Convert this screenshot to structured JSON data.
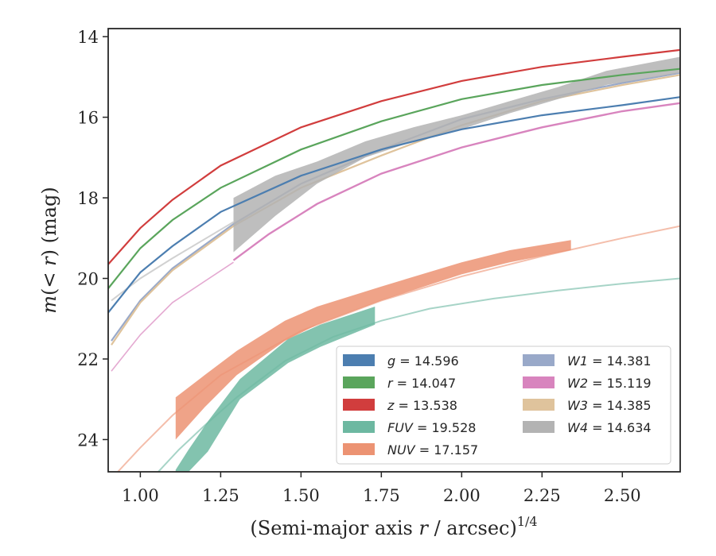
{
  "chart_data": {
    "type": "line",
    "title": "",
    "xlabel_main": "(Semi-major axis ",
    "xlabel_var": "r",
    "xlabel_rest": " / arcsec)",
    "xlabel_sup": "1/4",
    "ylabel_main": "m",
    "ylabel_mid": "(< ",
    "ylabel_var": "r",
    "ylabel_rest": ") (mag)",
    "xlim": [
      0.9,
      2.68
    ],
    "ylim": [
      24.8,
      13.8
    ],
    "y_inverted": true,
    "xticks": [
      1.0,
      1.25,
      1.5,
      1.75,
      2.0,
      2.25,
      2.5
    ],
    "xtick_labels": [
      "1.00",
      "1.25",
      "1.50",
      "1.75",
      "2.00",
      "2.25",
      "2.50"
    ],
    "yticks": [
      14,
      16,
      18,
      20,
      22,
      24
    ],
    "ytick_labels": [
      "14",
      "16",
      "18",
      "20",
      "22",
      "24"
    ],
    "grid": false,
    "legend_position": "lower-right",
    "series": [
      {
        "band": "g",
        "value": "14.596",
        "color": "#4c7eb0",
        "kind": "line",
        "model": {
          "x": [
            0.9,
            1.0,
            1.1,
            1.25,
            1.5,
            1.75,
            2.0,
            2.25,
            2.5,
            2.68
          ],
          "y": [
            20.85,
            19.85,
            19.2,
            18.35,
            17.45,
            16.8,
            16.3,
            15.95,
            15.7,
            15.5
          ]
        }
      },
      {
        "band": "r",
        "value": "14.047",
        "color": "#5aa55c",
        "kind": "line",
        "model": {
          "x": [
            0.9,
            1.0,
            1.1,
            1.25,
            1.5,
            1.75,
            2.0,
            2.25,
            2.5,
            2.68
          ],
          "y": [
            20.25,
            19.25,
            18.55,
            17.75,
            16.8,
            16.1,
            15.55,
            15.2,
            14.95,
            14.8
          ]
        }
      },
      {
        "band": "z",
        "value": "13.538",
        "color": "#d13d3d",
        "kind": "line",
        "model": {
          "x": [
            0.9,
            1.0,
            1.1,
            1.25,
            1.5,
            1.75,
            2.0,
            2.25,
            2.5,
            2.68
          ],
          "y": [
            19.65,
            18.75,
            18.05,
            17.2,
            16.25,
            15.6,
            15.1,
            14.75,
            14.5,
            14.33
          ]
        }
      },
      {
        "band": "FUV",
        "value": "19.528",
        "color": "#6db8a1",
        "kind": "band",
        "model": {
          "x": [
            1.05,
            1.12,
            1.2,
            1.3,
            1.45,
            1.6,
            1.75,
            1.9,
            2.1,
            2.3,
            2.5,
            2.68
          ],
          "y": [
            24.85,
            24.25,
            23.65,
            22.95,
            22.05,
            21.45,
            21.05,
            20.75,
            20.5,
            20.3,
            20.13,
            20.0
          ]
        },
        "band_x": [
          1.11,
          1.15,
          1.21,
          1.31,
          1.46,
          1.56,
          1.73
        ],
        "band_lo": [
          24.75,
          24.25,
          23.55,
          22.5,
          21.5,
          21.15,
          20.7
        ],
        "band_hi": [
          24.8,
          24.8,
          24.3,
          23.0,
          22.1,
          21.7,
          21.15
        ]
      },
      {
        "band": "NUV",
        "value": "17.157",
        "color": "#ec9373",
        "kind": "band",
        "model": {
          "x": [
            0.93,
            1.0,
            1.1,
            1.25,
            1.5,
            1.75,
            2.0,
            2.25,
            2.5,
            2.68
          ],
          "y": [
            24.8,
            24.2,
            23.4,
            22.4,
            21.3,
            20.55,
            19.95,
            19.45,
            19.0,
            18.7
          ]
        },
        "band_x": [
          1.11,
          1.2,
          1.3,
          1.45,
          1.55,
          1.75,
          2.0,
          2.15,
          2.34
        ],
        "band_lo": [
          22.95,
          22.4,
          21.8,
          21.05,
          20.7,
          20.2,
          19.6,
          19.3,
          19.05
        ],
        "band_hi": [
          24.0,
          23.2,
          22.4,
          21.55,
          21.15,
          20.55,
          19.9,
          19.6,
          19.3
        ]
      },
      {
        "band": "W1",
        "value": "14.381",
        "color": "#99a9c9",
        "kind": "line",
        "model": {
          "x": [
            0.91,
            1.0,
            1.1,
            1.29,
            1.5,
            1.75,
            2.0,
            2.25,
            2.5,
            2.68
          ],
          "y": [
            21.55,
            20.55,
            19.75,
            18.65,
            17.65,
            16.8,
            16.05,
            15.55,
            15.15,
            14.9
          ]
        }
      },
      {
        "band": "W2",
        "value": "15.119",
        "color": "#d884be",
        "kind": "line",
        "model": {
          "x": [
            0.91,
            1.0,
            1.1,
            1.29
          ],
          "y": [
            22.3,
            21.4,
            20.6,
            19.6
          ]
        },
        "data": {
          "x": [
            1.29,
            1.4,
            1.55,
            1.75,
            2.0,
            2.25,
            2.5,
            2.68
          ],
          "y": [
            19.55,
            18.9,
            18.15,
            17.4,
            16.75,
            16.25,
            15.85,
            15.65
          ]
        }
      },
      {
        "band": "W3",
        "value": "14.385",
        "color": "#dfc39c",
        "kind": "line",
        "model": {
          "x": [
            0.91,
            1.0,
            1.1,
            1.29,
            1.5,
            1.75,
            2.0,
            2.25,
            2.5,
            2.68
          ],
          "y": [
            21.65,
            20.6,
            19.8,
            18.7,
            17.75,
            16.95,
            16.2,
            15.6,
            15.2,
            14.95
          ]
        }
      },
      {
        "band": "W4",
        "value": "14.634",
        "color": "#b3b3b3",
        "kind": "band",
        "model": {
          "x": [
            0.91,
            1.0,
            1.1,
            1.29
          ],
          "y": [
            20.55,
            20.0,
            19.5,
            18.6
          ]
        },
        "band_x": [
          1.29,
          1.42,
          1.55,
          1.7,
          1.85,
          2.0,
          2.15,
          2.3,
          2.45,
          2.68
        ],
        "band_lo": [
          18.0,
          17.45,
          17.1,
          16.6,
          16.25,
          15.95,
          15.6,
          15.25,
          14.85,
          14.5
        ],
        "band_hi": [
          19.35,
          18.45,
          17.65,
          17.0,
          16.6,
          16.3,
          15.9,
          15.55,
          15.2,
          14.9
        ]
      }
    ]
  }
}
